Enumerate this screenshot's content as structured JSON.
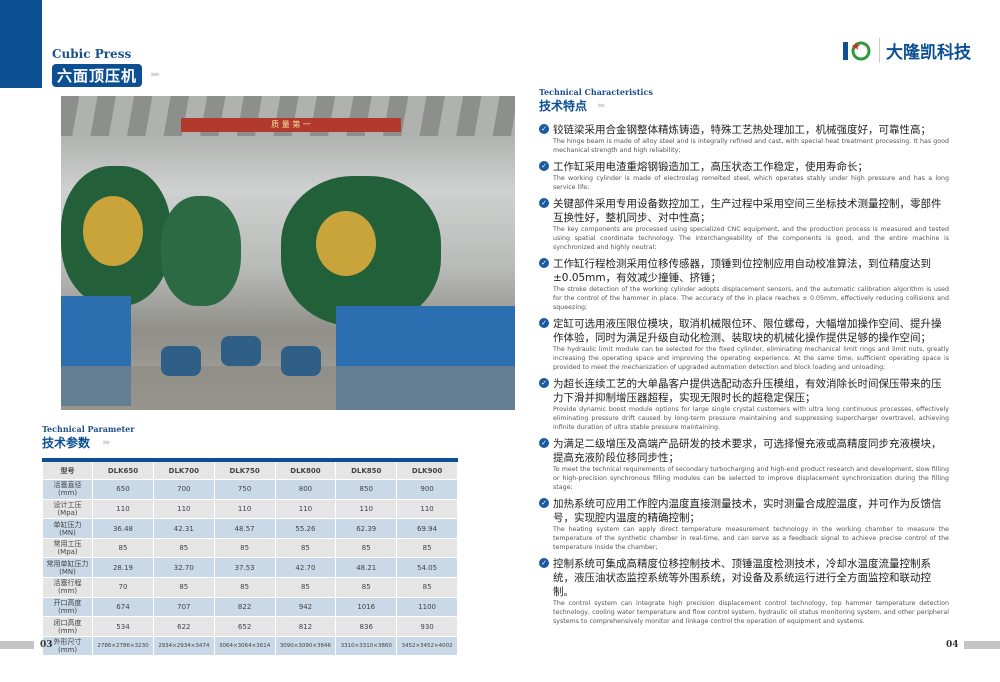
{
  "left_page": {
    "title_en": "Cubic Press",
    "title_cn": "六面顶压机",
    "photo_banner_text": "质 量 第 一",
    "param_title_en": "Technical Parameter",
    "param_title_cn": "技术参数",
    "table": {
      "headers": [
        "型号",
        "DLK650",
        "DLK700",
        "DLK750",
        "DLK800",
        "DLK850",
        "DLK900"
      ],
      "rows": [
        {
          "label": "活塞直径",
          "unit": "(mm)",
          "values": [
            "650",
            "700",
            "750",
            "800",
            "850",
            "900"
          ]
        },
        {
          "label": "设计工压",
          "unit": "(Mpa)",
          "values": [
            "110",
            "110",
            "110",
            "110",
            "110",
            "110"
          ]
        },
        {
          "label": "单缸压力",
          "unit": "(MN)",
          "values": [
            "36.48",
            "42.31",
            "48.57",
            "55.26",
            "62.39",
            "69.94"
          ]
        },
        {
          "label": "常用工压",
          "unit": "(Mpa)",
          "values": [
            "85",
            "85",
            "85",
            "85",
            "85",
            "85"
          ]
        },
        {
          "label": "常用单缸压力",
          "unit": "(MN)",
          "values": [
            "28.19",
            "32.70",
            "37.53",
            "42.70",
            "48.21",
            "54.05"
          ]
        },
        {
          "label": "活塞行程",
          "unit": "(mm)",
          "values": [
            "70",
            "85",
            "85",
            "85",
            "85",
            "85"
          ]
        },
        {
          "label": "开口高度",
          "unit": "(mm)",
          "values": [
            "674",
            "707",
            "822",
            "942",
            "1016",
            "1100"
          ]
        },
        {
          "label": "闭口高度",
          "unit": "(mm)",
          "values": [
            "534",
            "622",
            "652",
            "812",
            "836",
            "930"
          ]
        },
        {
          "label": "外形尺寸",
          "unit": "(mm)",
          "values": [
            "2786×2786×3230",
            "2934×2934×3474",
            "3064×3064×3614",
            "3090×3090×3846",
            "3310×3310×3860",
            "3452×3452×4002"
          ]
        }
      ]
    },
    "page_number": "03"
  },
  "right_page": {
    "brand": "大隆凯科技",
    "title_en": "Technical Characteristics",
    "title_cn": "技术特点",
    "items": [
      {
        "cn": "铰链梁采用合金钢整体精炼铸造，特殊工艺热处理加工，机械强度好，可靠性高；",
        "en": "The hinge beam is made of alloy steel and is integrally refined and cast, with special heat treatment processing. It has good mechanical strength and high reliability;"
      },
      {
        "cn": "工作缸采用电渣重熔钢锻造加工，高压状态工作稳定，使用寿命长；",
        "en": "The working cylinder is made of electroslag remelted steel, which operates stably under high pressure and has a long service life;"
      },
      {
        "cn": "关键部件采用专用设备数控加工，生产过程中采用空间三坐标技术测量控制，零部件互换性好，整机同步、对中性高；",
        "en": "The key components are processed using specialized CNC equipment, and the production process is measured and tested using spatial coordinate technology. The interchangeability of the components is good, and the entire machine is synchronized and highly neutral;"
      },
      {
        "cn": "工作缸行程检测采用位移传感器，顶锤到位控制应用自动校准算法，到位精度达到±0.05mm，有效减少撞锤、挤锤；",
        "en": "The stroke detection of the working cylinder adopts displacement sensors, and the automatic calibration algorithm is used for the control of the hammer in place. The accuracy of the in place reaches ± 0.05mm, effectively reducing collisions and squeezing;"
      },
      {
        "cn": "定缸可选用液压限位模块，取消机械限位环、限位螺母，大幅增加操作空间、提升操作体验，同时为满足升级自动化检测、装取块的机械化操作提供足够的操作空间；",
        "en": "The hydraulic limit module can be selected for the fixed cylinder, eliminating mechanical limit rings and limit nuts, greatly increasing the operating space and improving the operating experience. At the same time, sufficient operating space is provided to meet the mechanization of upgraded automation detection and block loading and unloading;"
      },
      {
        "cn": "为超长连续工艺的大单晶客户提供选配动态升压模组，有效消除长时间保压带来的压力下滑并抑制增压器超程，实现无限时长的超稳定保压；",
        "en": "Provide dynamic boost module options for large single crystal customers with ultra long continuous processes, effectively eliminating pressure drift caused by long-term pressure maintaining and suppressing supercharger overtravel, achieving infinite duration of ultra stable pressure maintaining."
      },
      {
        "cn": "为满足二级增压及高端产品研发的技术要求，可选择慢充液或高精度同步充液模块，提高充液阶段位移同步性；",
        "en": "To meet the technical requirements of secondary turbocharging and high-end product research and development, slow filling or high-precision synchronous filling modules can be selected to improve displacement synchronization during the filling stage;"
      },
      {
        "cn": "加热系统可应用工作腔内温度直接测量技术，实时测量合成腔温度，并可作为反馈信号，实现腔内温度的精确控制；",
        "en": "The heating system can apply direct temperature measurement technology in the working chamber to measure the temperature of the synthetic chamber in real-time, and can serve as a feedback signal to achieve precise control of the temperature inside the chamber;"
      },
      {
        "cn": "控制系统可集成高精度位移控制技术、顶锤温度检测技术，冷却水温度流量控制系统，液压油状态监控系统等外围系统，对设备及系统运行进行全方面监控和联动控制。",
        "en": "The control system can integrate high precision displacement control technology, top hammer temperature detection technology, cooling water temperature and flow control system, hydraulic oil status monitoring system, and other peripheral systems to comprehensively monitor and linkage control the operation of equipment and systems."
      }
    ],
    "page_number": "04"
  },
  "colors": {
    "brand_blue": "#0d4f93",
    "row_blue": "#c9d9e7",
    "row_gray": "#e5e5e5",
    "logo_green": "#2e9a3c"
  }
}
